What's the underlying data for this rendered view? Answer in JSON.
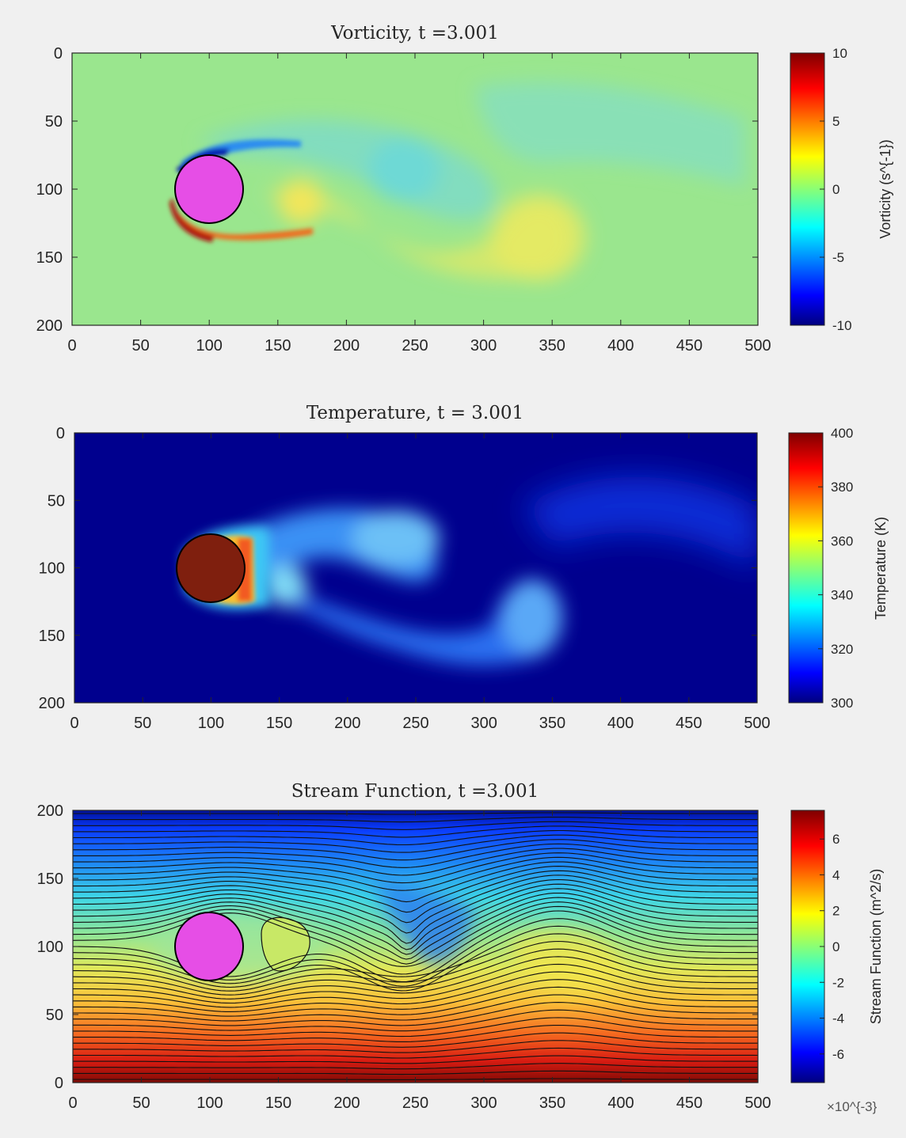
{
  "chart_data": [
    {
      "type": "heatmap",
      "title": "Vorticity, t =3.001",
      "xlim": [
        0,
        500
      ],
      "ylim": [
        200,
        0
      ],
      "y_direction": "reversed",
      "xticks": [
        "0",
        "50",
        "100",
        "150",
        "200",
        "250",
        "300",
        "350",
        "400",
        "450",
        "500"
      ],
      "yticks": [
        "0",
        "50",
        "100",
        "150",
        "200"
      ],
      "colorbar": {
        "label": "Vorticity (s^{-1})",
        "colormap": "jet",
        "range": [
          -10,
          10
        ],
        "ticks": [
          "10",
          "5",
          "0",
          "-5",
          "-10"
        ]
      },
      "obstacle": {
        "shape": "circle",
        "center": [
          100,
          100
        ],
        "radius": 25,
        "color": "#e64ee6"
      },
      "features": [
        {
          "description_value": "cylinder wake vortex street, blue (negative) upper shear layer and red (positive) lower shear layer"
        }
      ]
    },
    {
      "type": "heatmap",
      "title": "Temperature, t = 3.001",
      "xlim": [
        0,
        500
      ],
      "ylim": [
        200,
        0
      ],
      "y_direction": "reversed",
      "xticks": [
        "0",
        "50",
        "100",
        "150",
        "200",
        "250",
        "300",
        "350",
        "400",
        "450",
        "500"
      ],
      "yticks": [
        "0",
        "50",
        "100",
        "150",
        "200"
      ],
      "colorbar": {
        "label": "Temperature (K)",
        "colormap": "jet",
        "range": [
          300,
          400
        ],
        "ticks": [
          "400",
          "380",
          "360",
          "340",
          "320",
          "300"
        ]
      },
      "obstacle": {
        "shape": "circle",
        "center": [
          100,
          100
        ],
        "radius": 25,
        "color": "#7f1f0e"
      }
    },
    {
      "type": "contour",
      "title": "Stream Function, t =3.001",
      "xlim": [
        0,
        500
      ],
      "ylim": [
        0,
        200
      ],
      "xticks": [
        "0",
        "50",
        "100",
        "150",
        "200",
        "250",
        "300",
        "350",
        "400",
        "450",
        "500"
      ],
      "yticks": [
        "200",
        "150",
        "100",
        "50",
        "0"
      ],
      "colorbar": {
        "label": "Stream Function (m^2/s)",
        "colormap": "jet",
        "range": [
          -7.6,
          7.6
        ],
        "ticks": [
          "6",
          "4",
          "2",
          "0",
          "-2",
          "-4",
          "-6"
        ],
        "exponent": "×10^{-3}"
      },
      "obstacle": {
        "shape": "circle",
        "center": [
          100,
          100
        ],
        "radius": 25,
        "color": "#e64ee6"
      }
    }
  ]
}
